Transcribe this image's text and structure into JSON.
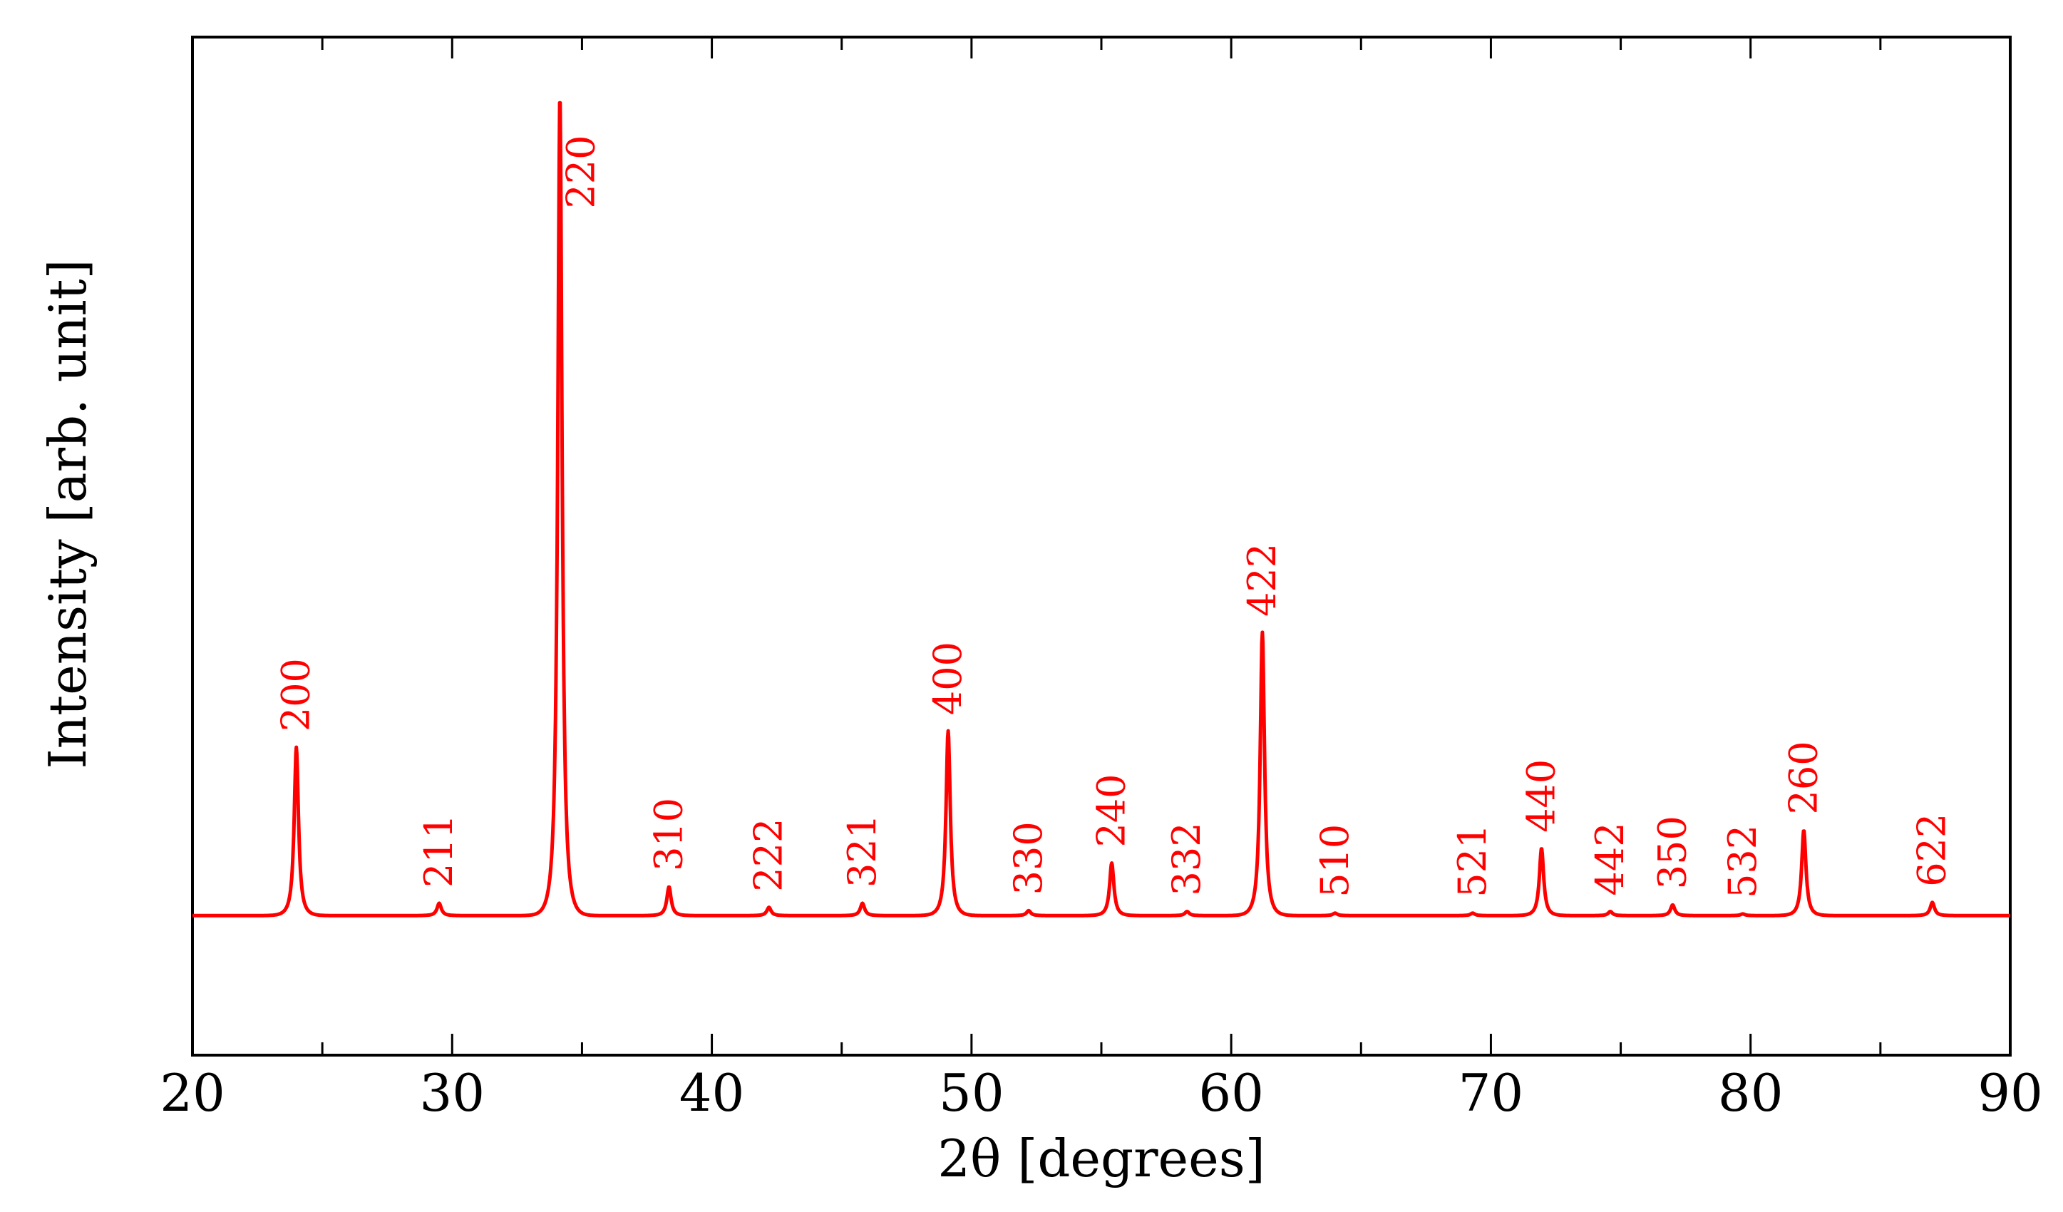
{
  "chart_data": {
    "type": "line",
    "title": "",
    "xlabel": "2θ [degrees]",
    "ylabel": "Intensity [arb. unit]",
    "xlim": [
      20,
      90
    ],
    "ylim": [
      -0.17,
      1.07
    ],
    "x_ticks": [
      20,
      30,
      40,
      50,
      60,
      70,
      80,
      90
    ],
    "x_tick_labels": [
      "20",
      "30",
      "40",
      "50",
      "60",
      "70",
      "80",
      "90"
    ],
    "grid": false,
    "legend": "none",
    "colors": {
      "series": "#ff0000",
      "axis": "#000000"
    },
    "baseline": 0.0,
    "series": [
      {
        "peaks": [
          {
            "label": "200",
            "x": 24.0,
            "height": 0.205
          },
          {
            "label": "211",
            "x": 29.5,
            "height": 0.015
          },
          {
            "label": "220",
            "x": 34.15,
            "height": 1.0
          },
          {
            "label": "310",
            "x": 38.35,
            "height": 0.035
          },
          {
            "label": "222",
            "x": 42.2,
            "height": 0.01
          },
          {
            "label": "321",
            "x": 45.8,
            "height": 0.015
          },
          {
            "label": "400",
            "x": 49.1,
            "height": 0.225
          },
          {
            "label": "330",
            "x": 52.2,
            "height": 0.006
          },
          {
            "label": "240",
            "x": 55.4,
            "height": 0.064
          },
          {
            "label": "332",
            "x": 58.3,
            "height": 0.005
          },
          {
            "label": "422",
            "x": 61.2,
            "height": 0.345
          },
          {
            "label": "510",
            "x": 64.0,
            "height": 0.003
          },
          {
            "label": "521",
            "x": 69.3,
            "height": 0.003
          },
          {
            "label": "440",
            "x": 71.95,
            "height": 0.082
          },
          {
            "label": "442",
            "x": 74.6,
            "height": 0.005
          },
          {
            "label": "350",
            "x": 77.0,
            "height": 0.013
          },
          {
            "label": "532",
            "x": 79.7,
            "height": 0.002
          },
          {
            "label": "260",
            "x": 82.05,
            "height": 0.104
          },
          {
            "label": "622",
            "x": 87.0,
            "height": 0.016
          }
        ]
      }
    ]
  }
}
